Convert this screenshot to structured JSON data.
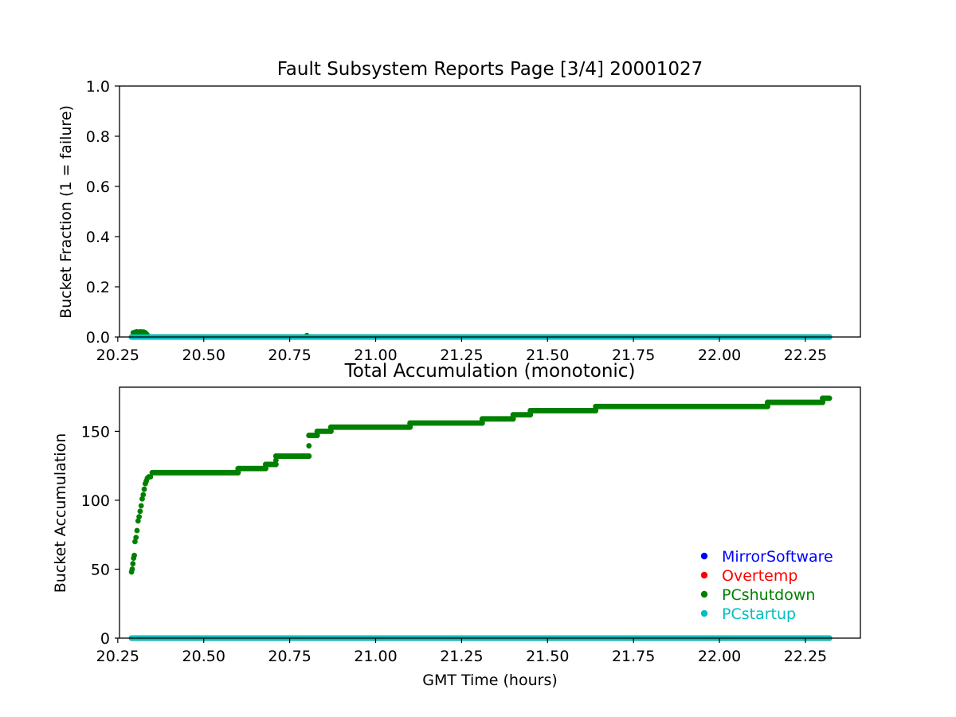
{
  "chart_data": [
    {
      "type": "scatter",
      "title": "Fault Subsystem Reports Page [3/4] 20001027",
      "xlabel": "",
      "ylabel": "Bucket Fraction (1 = failure)",
      "xlim": [
        20.255,
        22.41
      ],
      "ylim": [
        0,
        1.0
      ],
      "xticks": [
        "20.25",
        "20.50",
        "20.75",
        "21.00",
        "21.25",
        "21.50",
        "21.75",
        "22.00",
        "22.25"
      ],
      "yticks": [
        "0.0",
        "0.2",
        "0.4",
        "0.6",
        "0.8",
        "1.0"
      ],
      "grid": false,
      "series": [
        {
          "name": "MirrorSoftware",
          "color": "#0000ff",
          "range": [
            20.29,
            22.32
          ],
          "value": 0
        },
        {
          "name": "Overtemp",
          "color": "#ff0000",
          "range": [
            20.29,
            22.32
          ],
          "value": 0
        },
        {
          "name": "PCshutdown",
          "color": "#008000",
          "range": [
            20.29,
            22.32
          ],
          "value": 0,
          "points": [
            [
              20.295,
              0.017
            ],
            [
              20.3,
              0.019
            ],
            [
              20.305,
              0.021
            ],
            [
              20.31,
              0.019
            ],
            [
              20.315,
              0.021
            ],
            [
              20.32,
              0.02
            ],
            [
              20.325,
              0.02
            ],
            [
              20.33,
              0.017
            ],
            [
              20.335,
              0.01
            ],
            [
              20.8,
              0.006
            ]
          ]
        },
        {
          "name": "PCstartup",
          "color": "#00bfbf",
          "range": [
            20.29,
            22.32
          ],
          "value": 0
        }
      ]
    },
    {
      "type": "scatter",
      "title": "Total Accumulation (monotonic)",
      "xlabel": "GMT Time (hours)",
      "ylabel": "Bucket Accumulation",
      "xlim": [
        20.255,
        22.41
      ],
      "ylim": [
        0,
        182
      ],
      "xticks": [
        "20.25",
        "20.50",
        "20.75",
        "21.00",
        "21.25",
        "21.50",
        "21.75",
        "22.00",
        "22.25"
      ],
      "yticks": [
        "0",
        "50",
        "100",
        "150"
      ],
      "grid": false,
      "legend": "lower right",
      "series": [
        {
          "name": "MirrorSoftware",
          "color": "#0000ff",
          "range": [
            20.29,
            22.32
          ],
          "value": 0
        },
        {
          "name": "Overtemp",
          "color": "#ff0000",
          "range": [
            20.29,
            22.32
          ],
          "value": 0
        },
        {
          "name": "PCshutdown",
          "color": "#008000",
          "rise": [
            [
              20.29,
              48
            ],
            [
              20.292,
              50
            ],
            [
              20.294,
              54
            ],
            [
              20.296,
              58
            ],
            [
              20.298,
              60
            ],
            [
              20.3,
              70
            ],
            [
              20.303,
              73
            ],
            [
              20.306,
              78
            ],
            [
              20.309,
              85
            ],
            [
              20.312,
              88
            ],
            [
              20.315,
              92
            ],
            [
              20.318,
              96
            ],
            [
              20.321,
              101
            ],
            [
              20.324,
              104
            ],
            [
              20.327,
              108
            ],
            [
              20.33,
              112
            ],
            [
              20.333,
              114
            ],
            [
              20.336,
              116
            ],
            [
              20.34,
              117
            ],
            [
              20.345,
              117
            ]
          ],
          "steps": [
            [
              20.35,
              20.6,
              120
            ],
            [
              20.6,
              20.68,
              123
            ],
            [
              20.68,
              20.71,
              126
            ],
            [
              20.71,
              20.79,
              132
            ],
            [
              20.79,
              20.806,
              132
            ],
            [
              20.806,
              20.83,
              147
            ],
            [
              20.83,
              20.87,
              150
            ],
            [
              20.87,
              21.1,
              153
            ],
            [
              21.1,
              21.31,
              156
            ],
            [
              21.31,
              21.4,
              159
            ],
            [
              21.4,
              21.45,
              162
            ],
            [
              21.45,
              21.64,
              165
            ],
            [
              21.64,
              22.14,
              168
            ],
            [
              22.14,
              22.3,
              171
            ],
            [
              22.3,
              22.32,
              174
            ]
          ]
        },
        {
          "name": "PCstartup",
          "color": "#00bfbf",
          "range": [
            20.29,
            22.32
          ],
          "value": 0
        }
      ]
    }
  ]
}
